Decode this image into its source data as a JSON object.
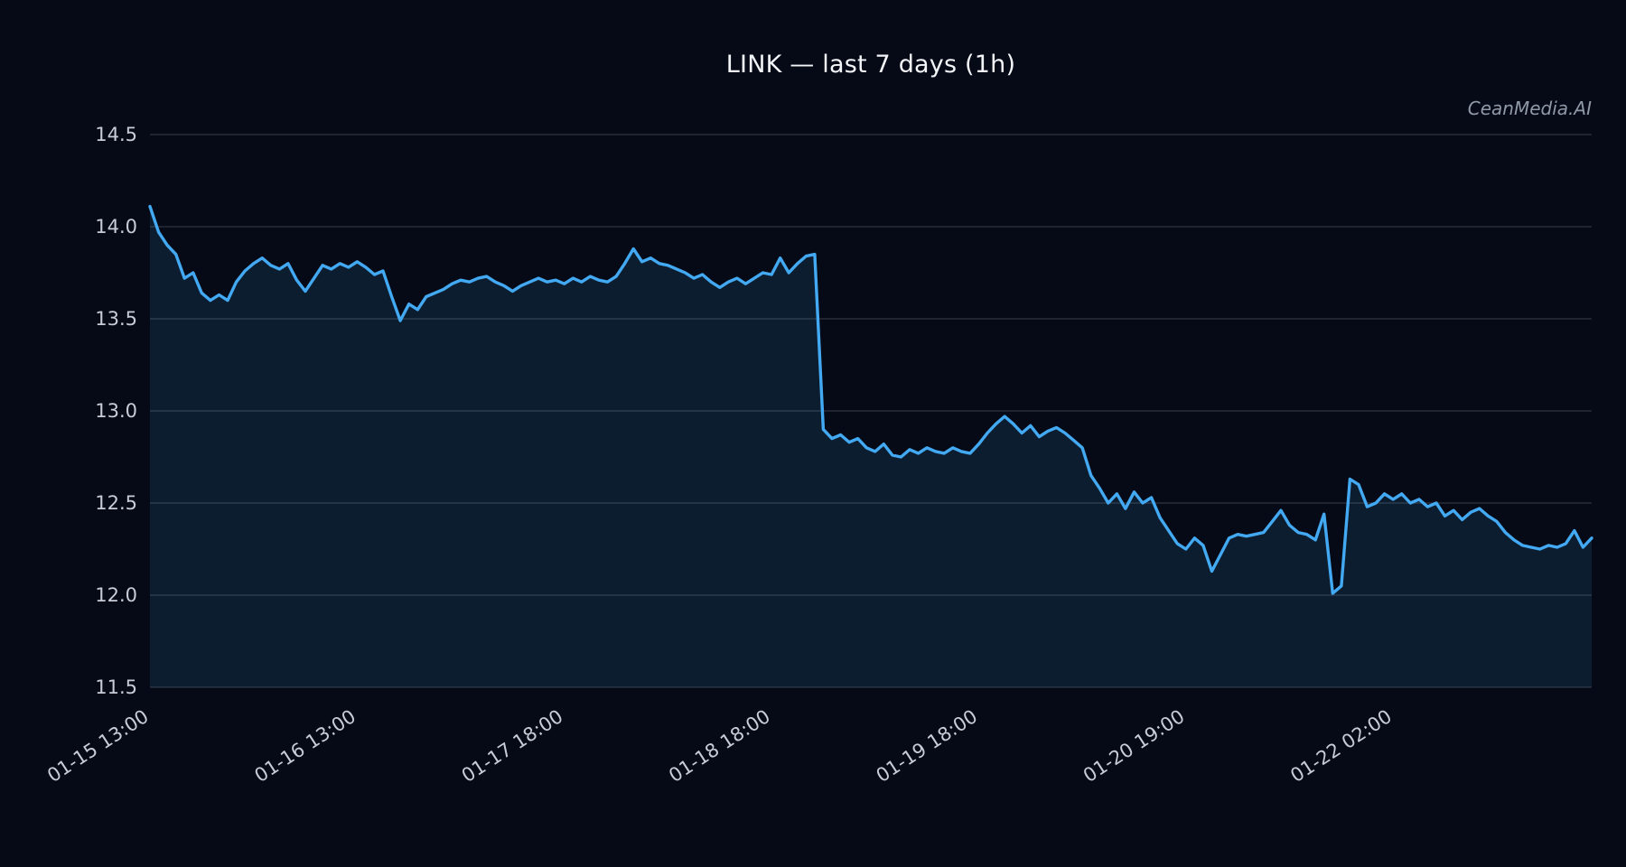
{
  "chart_data": {
    "type": "area",
    "title": "LINK — last 7 days (1h)",
    "watermark": "CeanMedia.AI",
    "xlabel": "",
    "ylabel": "",
    "ylim": [
      11.5,
      14.5
    ],
    "grid": true,
    "legend": "none",
    "line_color": "#42a9f2",
    "fill_color": "rgba(66,169,242,0.12)",
    "grid_color": "rgba(195,202,214,0.22)",
    "tick_label_color": "#c7ccd6",
    "background_color": "#060a16",
    "yticks": [
      11.5,
      12.0,
      12.5,
      13.0,
      13.5,
      14.0,
      14.5
    ],
    "ytick_labels": [
      "11.5",
      "12.0",
      "12.5",
      "13.0",
      "13.5",
      "14.0",
      "14.5"
    ],
    "xtick_indices": [
      0,
      24,
      48,
      72,
      96,
      120,
      144
    ],
    "xtick_labels": [
      "01-15 13:00",
      "01-16 13:00",
      "01-17 18:00",
      "01-18 18:00",
      "01-19 18:00",
      "01-20 19:00",
      "01-22 02:00"
    ],
    "values": [
      14.11,
      13.97,
      13.9,
      13.85,
      13.72,
      13.75,
      13.64,
      13.6,
      13.63,
      13.6,
      13.7,
      13.76,
      13.8,
      13.83,
      13.79,
      13.77,
      13.8,
      13.71,
      13.65,
      13.72,
      13.79,
      13.77,
      13.8,
      13.78,
      13.81,
      13.78,
      13.74,
      13.76,
      13.62,
      13.49,
      13.58,
      13.55,
      13.62,
      13.64,
      13.66,
      13.69,
      13.71,
      13.7,
      13.72,
      13.73,
      13.7,
      13.68,
      13.65,
      13.68,
      13.7,
      13.72,
      13.7,
      13.71,
      13.69,
      13.72,
      13.7,
      13.73,
      13.71,
      13.7,
      13.73,
      13.8,
      13.88,
      13.81,
      13.83,
      13.8,
      13.79,
      13.77,
      13.75,
      13.72,
      13.74,
      13.7,
      13.67,
      13.7,
      13.72,
      13.69,
      13.72,
      13.75,
      13.74,
      13.83,
      13.75,
      13.8,
      13.84,
      13.85,
      12.9,
      12.85,
      12.87,
      12.83,
      12.85,
      12.8,
      12.78,
      12.82,
      12.76,
      12.75,
      12.79,
      12.77,
      12.8,
      12.78,
      12.77,
      12.8,
      12.78,
      12.77,
      12.82,
      12.88,
      12.93,
      12.97,
      12.93,
      12.88,
      12.92,
      12.86,
      12.89,
      12.91,
      12.88,
      12.84,
      12.8,
      12.65,
      12.58,
      12.5,
      12.55,
      12.47,
      12.56,
      12.5,
      12.53,
      12.42,
      12.35,
      12.28,
      12.25,
      12.31,
      12.27,
      12.13,
      12.22,
      12.31,
      12.33,
      12.32,
      12.33,
      12.34,
      12.4,
      12.46,
      12.38,
      12.34,
      12.33,
      12.3,
      12.44,
      12.01,
      12.05,
      12.63,
      12.6,
      12.48,
      12.5,
      12.55,
      12.52,
      12.55,
      12.5,
      12.52,
      12.48,
      12.5,
      12.43,
      12.46,
      12.41,
      12.45,
      12.47,
      12.43,
      12.4,
      12.34,
      12.3,
      12.27,
      12.26,
      12.25,
      12.27,
      12.26,
      12.28,
      12.35,
      12.26,
      12.31
    ]
  }
}
